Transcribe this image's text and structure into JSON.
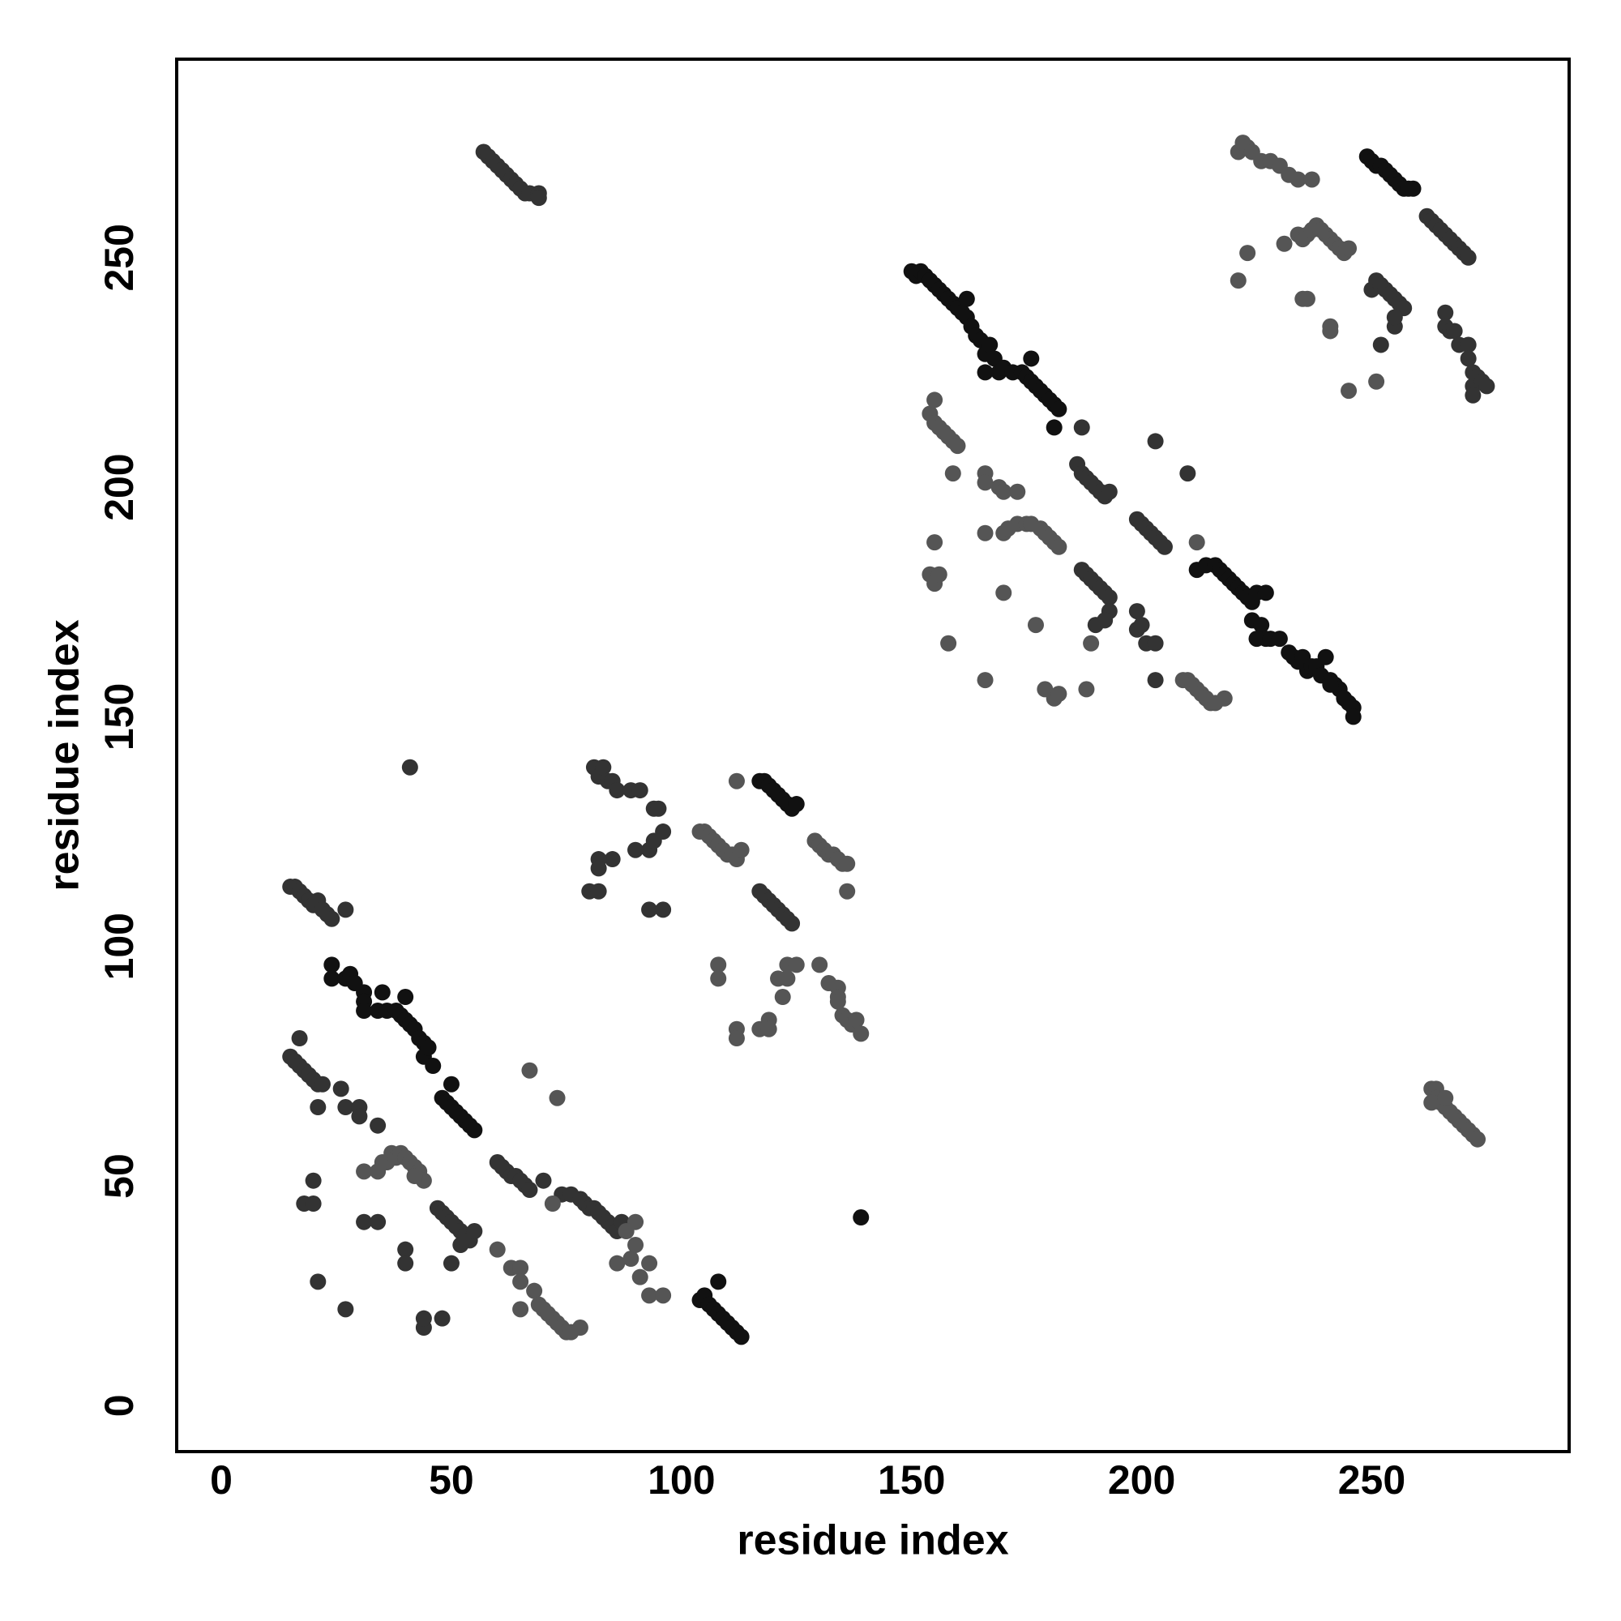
{
  "chart_data": {
    "type": "scatter",
    "x_label": "residue index",
    "y_label": "residue index",
    "xlim": [
      -9.7,
      292.9
    ],
    "ylim": [
      -10,
      293.2
    ],
    "xticks": [
      0,
      50,
      100,
      150,
      200,
      250
    ],
    "yticks": [
      0,
      50,
      100,
      150,
      200,
      250
    ],
    "series": [
      {
        "color": "#111111",
        "x": [
          24,
          24,
          27,
          28,
          29,
          31,
          31,
          31,
          34,
          35,
          36,
          38,
          39,
          40,
          40,
          41,
          42,
          43,
          44,
          44,
          45,
          46,
          48,
          49,
          50,
          50,
          51,
          52,
          53,
          54,
          55,
          104,
          105,
          106,
          107,
          108,
          108,
          109,
          110,
          111,
          112,
          113,
          139,
          117,
          118,
          119,
          120,
          121,
          122,
          123,
          124,
          125,
          150,
          151,
          152,
          153,
          154,
          155,
          156,
          157,
          158,
          159,
          160,
          161,
          162,
          162,
          163,
          164,
          165,
          166,
          167,
          168,
          169,
          170,
          172,
          174,
          175,
          176,
          176,
          177,
          178,
          179,
          180,
          181,
          182,
          181,
          166,
          212,
          214,
          216,
          217,
          218,
          219,
          220,
          221,
          222,
          223,
          224,
          225,
          227,
          224,
          226,
          227,
          225,
          228,
          230,
          232,
          233,
          234,
          235,
          236,
          237,
          238,
          239,
          240,
          241,
          242,
          243,
          244,
          245,
          246,
          246,
          241,
          249,
          250,
          251,
          252,
          253,
          254,
          255,
          256,
          257,
          258,
          259
        ],
        "y": [
          96,
          93,
          93,
          94,
          92,
          90,
          88,
          86,
          86,
          90,
          86,
          86,
          85,
          89,
          84,
          83,
          82,
          80,
          79,
          76,
          78,
          74,
          67,
          66,
          65,
          70,
          64,
          63,
          62,
          61,
          60,
          23,
          24,
          22,
          21,
          20,
          27,
          19,
          18,
          17,
          16,
          15,
          41,
          136,
          136,
          135,
          134,
          133,
          132,
          131,
          130,
          131,
          247,
          246,
          247,
          246,
          245,
          244,
          243,
          242,
          241,
          240,
          239,
          238,
          241,
          237,
          235,
          233,
          232,
          229,
          231,
          228,
          225,
          226,
          225,
          225,
          224,
          228,
          223,
          222,
          221,
          220,
          219,
          218,
          217,
          213,
          225,
          182,
          183,
          183,
          182,
          181,
          180,
          179,
          178,
          177,
          176,
          175,
          177,
          177,
          171,
          170,
          167,
          167,
          167,
          167,
          164,
          163,
          162,
          163,
          160,
          161,
          161,
          159,
          163,
          158,
          157,
          156,
          154,
          153,
          152,
          150,
          157,
          272,
          271,
          270,
          270,
          269,
          268,
          267,
          266,
          265,
          265,
          265
        ]
      },
      {
        "color": "#333333",
        "x": [
          57,
          58,
          59,
          60,
          61,
          62,
          63,
          64,
          65,
          66,
          67,
          69,
          69,
          15,
          16,
          17,
          18,
          19,
          20,
          21,
          22,
          17,
          21,
          26,
          27,
          30,
          30,
          34,
          15,
          16,
          17,
          18,
          19,
          20,
          21,
          22,
          23,
          24,
          27,
          60,
          61,
          62,
          63,
          64,
          65,
          66,
          67,
          70,
          74,
          76,
          78,
          79,
          80,
          81,
          82,
          83,
          84,
          85,
          86,
          87,
          47,
          48,
          49,
          50,
          51,
          52,
          53,
          54,
          55,
          52,
          50,
          48,
          44,
          44,
          40,
          40,
          31,
          34,
          18,
          20,
          20,
          21,
          27,
          41,
          81,
          82,
          83,
          84,
          85,
          86,
          89,
          91,
          94,
          95,
          96,
          93,
          94,
          90,
          85,
          82,
          82,
          80,
          82,
          93,
          96,
          117,
          118,
          119,
          120,
          121,
          122,
          123,
          124,
          186,
          187,
          188,
          189,
          190,
          191,
          192,
          193,
          187,
          199,
          200,
          201,
          202,
          203,
          204,
          205,
          203,
          210,
          187,
          188,
          189,
          190,
          191,
          192,
          193,
          193,
          190,
          192,
          199,
          199,
          200,
          201,
          203,
          203,
          250,
          251,
          252,
          253,
          254,
          255,
          256,
          257,
          255,
          255,
          252,
          262,
          263,
          264,
          265,
          266,
          267,
          268,
          269,
          270,
          271,
          266,
          266,
          267,
          268,
          269,
          271,
          271,
          272,
          272,
          273,
          274,
          275,
          272
        ],
        "y": [
          273,
          272,
          271,
          270,
          269,
          268,
          267,
          266,
          265,
          264,
          264,
          264,
          263,
          76,
          75,
          74,
          73,
          72,
          71,
          70,
          70,
          80,
          65,
          69,
          65,
          65,
          63,
          61,
          113,
          113,
          112,
          111,
          110,
          109,
          110,
          108,
          107,
          106,
          108,
          53,
          52,
          51,
          50,
          50,
          49,
          48,
          47,
          49,
          46,
          46,
          45,
          44,
          43,
          43,
          42,
          41,
          40,
          39,
          38,
          40,
          43,
          42,
          41,
          40,
          39,
          38,
          37,
          36,
          38,
          35,
          31,
          19,
          17,
          19,
          34,
          31,
          40,
          40,
          44,
          44,
          49,
          27,
          21,
          139,
          139,
          137,
          139,
          136,
          136,
          134,
          134,
          134,
          130,
          130,
          125,
          121,
          123,
          121,
          119,
          119,
          117,
          112,
          112,
          108,
          108,
          112,
          111,
          110,
          109,
          108,
          107,
          106,
          105,
          205,
          203,
          202,
          201,
          200,
          199,
          198,
          199,
          213,
          193,
          192,
          191,
          190,
          189,
          188,
          187,
          210,
          203,
          182,
          181,
          180,
          179,
          178,
          177,
          176,
          173,
          170,
          171,
          173,
          169,
          170,
          166,
          166,
          158,
          243,
          245,
          244,
          243,
          242,
          241,
          240,
          239,
          235,
          237,
          231,
          259,
          258,
          257,
          256,
          255,
          254,
          253,
          252,
          251,
          250,
          238,
          235,
          234,
          234,
          231,
          231,
          228,
          225,
          222,
          224,
          223,
          222,
          220
        ]
      },
      {
        "color": "#555555",
        "x": [
          263,
          264,
          264,
          265,
          266,
          267,
          268,
          269,
          270,
          271,
          272,
          273,
          263,
          266,
          31,
          34,
          35,
          36,
          37,
          38,
          39,
          40,
          41,
          42,
          43,
          44,
          42,
          60,
          63,
          65,
          65,
          65,
          68,
          69,
          70,
          71,
          72,
          73,
          74,
          75,
          76,
          78,
          72,
          73,
          67,
          86,
          89,
          90,
          91,
          93,
          93,
          96,
          90,
          88,
          104,
          105,
          106,
          107,
          108,
          109,
          110,
          111,
          112,
          113,
          112,
          129,
          130,
          131,
          132,
          133,
          134,
          135,
          136,
          136,
          108,
          108,
          112,
          112,
          117,
          119,
          119,
          121,
          122,
          123,
          123,
          125,
          130,
          132,
          134,
          134,
          135,
          136,
          137,
          138,
          139,
          134,
          154,
          155,
          155,
          156,
          157,
          158,
          159,
          160,
          159,
          166,
          166,
          169,
          170,
          173,
          166,
          170,
          171,
          173,
          175,
          176,
          178,
          179,
          180,
          181,
          182,
          155,
          154,
          155,
          156,
          170,
          177,
          158,
          166,
          179,
          181,
          182,
          188,
          189,
          209,
          210,
          211,
          212,
          213,
          214,
          215,
          216,
          218,
          212,
          221,
          222,
          223,
          224,
          226,
          228,
          230,
          232,
          234,
          237,
          221,
          223,
          231,
          234,
          235,
          236,
          237,
          238,
          239,
          240,
          241,
          242,
          243,
          244,
          245,
          235,
          236,
          241,
          241,
          245,
          251
        ],
        "y": [
          69,
          69,
          67,
          66,
          65,
          64,
          63,
          62,
          61,
          60,
          59,
          58,
          66,
          67,
          51,
          51,
          53,
          53,
          55,
          54,
          55,
          54,
          53,
          52,
          51,
          49,
          50,
          34,
          30,
          30,
          27,
          21,
          25,
          22,
          21,
          20,
          19,
          18,
          17,
          16,
          16,
          17,
          44,
          67,
          73,
          31,
          32,
          35,
          28,
          31,
          24,
          24,
          40,
          38,
          125,
          125,
          124,
          123,
          122,
          121,
          120,
          120,
          119,
          121,
          136,
          123,
          122,
          121,
          120,
          120,
          119,
          118,
          118,
          112,
          96,
          93,
          82,
          80,
          82,
          84,
          82,
          93,
          89,
          93,
          96,
          96,
          96,
          92,
          91,
          89,
          85,
          84,
          83,
          84,
          81,
          88,
          216,
          219,
          214,
          213,
          212,
          211,
          210,
          209,
          203,
          203,
          201,
          200,
          199,
          199,
          190,
          190,
          191,
          192,
          192,
          192,
          191,
          190,
          189,
          188,
          187,
          188,
          181,
          179,
          181,
          177,
          170,
          166,
          158,
          156,
          154,
          155,
          156,
          166,
          158,
          158,
          157,
          156,
          155,
          154,
          153,
          153,
          154,
          188,
          273,
          275,
          274,
          273,
          271,
          271,
          270,
          268,
          267,
          267,
          245,
          251,
          253,
          255,
          254,
          255,
          256,
          257,
          256,
          255,
          254,
          253,
          252,
          251,
          252,
          241,
          241,
          235,
          234,
          221,
          223
        ]
      }
    ]
  }
}
